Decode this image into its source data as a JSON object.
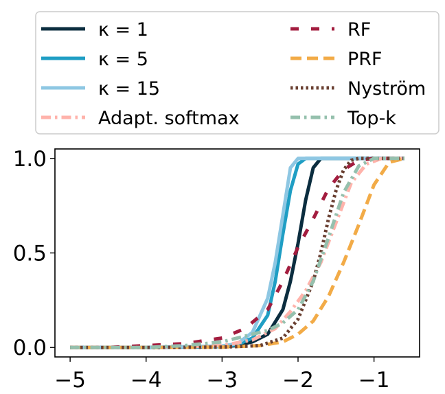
{
  "chart_data": {
    "type": "line",
    "title": "",
    "xlabel": "",
    "ylabel": "",
    "xlim": [
      -5.2,
      -0.4
    ],
    "ylim": [
      -0.05,
      1.05
    ],
    "xticks": [
      {
        "value": -5,
        "label": "−5"
      },
      {
        "value": -4,
        "label": "−4"
      },
      {
        "value": -3,
        "label": "−3"
      },
      {
        "value": -2,
        "label": "−2"
      },
      {
        "value": -1,
        "label": "−1"
      }
    ],
    "yticks": [
      {
        "value": 0.0,
        "label": "0.0"
      },
      {
        "value": 0.5,
        "label": "0.5"
      },
      {
        "value": 1.0,
        "label": "1.0"
      }
    ],
    "grid": false,
    "legend_position": "top, outside, 2 columns",
    "series": [
      {
        "name": "κ = 1",
        "color": "#0b2d3f",
        "dash": "solid",
        "x": [
          -5.0,
          -4.0,
          -3.0,
          -2.8,
          -2.6,
          -2.4,
          -2.2,
          -2.1,
          -2.0,
          -1.9,
          -1.8,
          -1.7,
          -1.0,
          -0.6
        ],
        "y": [
          0.0,
          0.0,
          0.005,
          0.01,
          0.03,
          0.07,
          0.2,
          0.35,
          0.55,
          0.78,
          0.95,
          1.0,
          1.0,
          1.0
        ]
      },
      {
        "name": "κ = 5",
        "color": "#1f9ec4",
        "dash": "solid",
        "x": [
          -5.0,
          -4.0,
          -3.0,
          -2.8,
          -2.6,
          -2.4,
          -2.3,
          -2.2,
          -2.1,
          -2.0,
          -1.9,
          -1.0,
          -0.6
        ],
        "y": [
          0.0,
          0.0,
          0.005,
          0.015,
          0.05,
          0.17,
          0.35,
          0.6,
          0.83,
          0.97,
          1.0,
          1.0,
          1.0
        ]
      },
      {
        "name": "κ = 15",
        "color": "#8ec7e3",
        "dash": "solid",
        "x": [
          -5.0,
          -4.0,
          -3.0,
          -2.8,
          -2.6,
          -2.4,
          -2.3,
          -2.2,
          -2.1,
          -2.0,
          -1.9,
          -1.0,
          -0.6
        ],
        "y": [
          0.0,
          0.0,
          0.008,
          0.02,
          0.08,
          0.26,
          0.45,
          0.7,
          0.95,
          1.0,
          1.0,
          1.0,
          1.0
        ]
      },
      {
        "name": "Adapt. softmax",
        "color": "#ffb3ab",
        "dash": "dashdot",
        "x": [
          -5.0,
          -4.0,
          -3.0,
          -2.6,
          -2.3,
          -2.1,
          -1.9,
          -1.7,
          -1.5,
          -1.3,
          -1.1,
          -0.9,
          -0.6
        ],
        "y": [
          0.0,
          0.0,
          0.01,
          0.04,
          0.1,
          0.19,
          0.3,
          0.45,
          0.66,
          0.87,
          0.97,
          1.0,
          1.0
        ]
      },
      {
        "name": "RF",
        "color": "#a31d3f",
        "dash": "loose",
        "x": [
          -5.0,
          -4.5,
          -4.0,
          -3.5,
          -3.0,
          -2.7,
          -2.4,
          -2.2,
          -2.0,
          -1.8,
          -1.6,
          -1.4,
          -1.2,
          -1.0,
          -0.6
        ],
        "y": [
          0.0,
          0.0,
          0.01,
          0.02,
          0.05,
          0.1,
          0.2,
          0.35,
          0.53,
          0.68,
          0.84,
          0.94,
          0.99,
          1.0,
          1.0
        ]
      },
      {
        "name": "PRF",
        "color": "#f2ab47",
        "dash": "dashed",
        "x": [
          -5.0,
          -4.0,
          -3.0,
          -2.5,
          -2.2,
          -2.0,
          -1.8,
          -1.6,
          -1.4,
          -1.2,
          -1.0,
          -0.8,
          -0.6
        ],
        "y": [
          0.0,
          0.0,
          0.002,
          0.01,
          0.03,
          0.07,
          0.14,
          0.27,
          0.45,
          0.65,
          0.86,
          0.98,
          1.0
        ]
      },
      {
        "name": "Nyström",
        "color": "#6a4032",
        "dash": "dotted",
        "x": [
          -5.0,
          -4.0,
          -3.0,
          -2.5,
          -2.2,
          -2.0,
          -1.8,
          -1.7,
          -1.6,
          -1.5,
          -1.4,
          -1.3,
          -1.2,
          -1.0,
          -0.6
        ],
        "y": [
          0.0,
          0.0,
          0.002,
          0.01,
          0.05,
          0.15,
          0.35,
          0.5,
          0.68,
          0.83,
          0.94,
          0.99,
          1.0,
          1.0,
          1.0
        ]
      },
      {
        "name": "Top-k",
        "color": "#95c0ad",
        "dash": "dashdot",
        "x": [
          -5.0,
          -4.0,
          -3.5,
          -3.0,
          -2.7,
          -2.4,
          -2.2,
          -2.0,
          -1.8,
          -1.6,
          -1.4,
          -1.2,
          -1.0,
          -0.6
        ],
        "y": [
          0.0,
          0.0,
          0.01,
          0.03,
          0.06,
          0.09,
          0.13,
          0.2,
          0.35,
          0.58,
          0.82,
          0.96,
          1.0,
          1.0
        ]
      }
    ]
  }
}
